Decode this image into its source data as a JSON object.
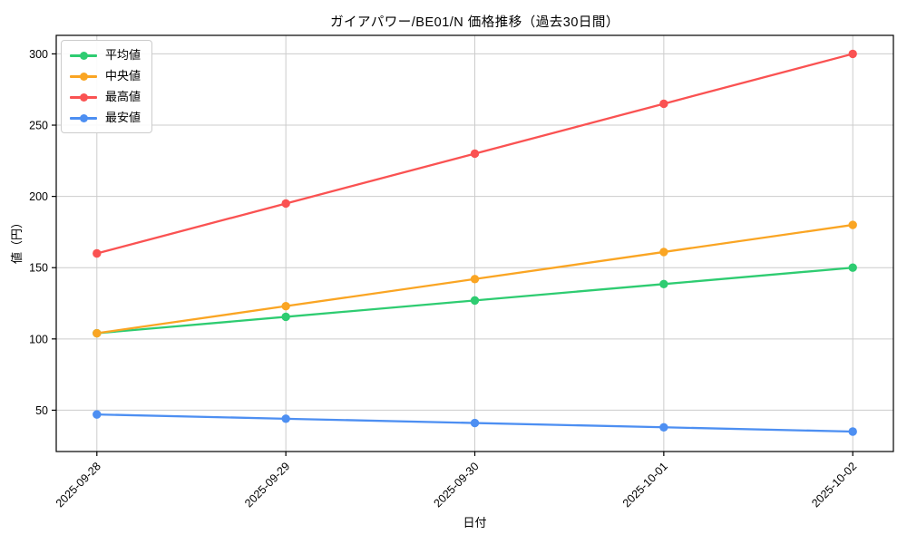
{
  "chart_data": {
    "type": "line",
    "title": "ガイアパワー/BE01/N 価格推移（過去30日間）",
    "xlabel": "日付",
    "ylabel": "値（円）",
    "categories": [
      "2025-09-28",
      "2025-09-29",
      "2025-09-30",
      "2025-10-01",
      "2025-10-02"
    ],
    "series": [
      {
        "name": "平均値",
        "color": "#2ecc71",
        "marker": "circle",
        "values": [
          104,
          115.5,
          127,
          138.5,
          150
        ]
      },
      {
        "name": "中央値",
        "color": "#faa523",
        "marker": "circle",
        "values": [
          104,
          123,
          142,
          161,
          180
        ]
      },
      {
        "name": "最高値",
        "color": "#fa5252",
        "marker": "circle",
        "values": [
          160,
          195,
          230,
          265,
          300
        ]
      },
      {
        "name": "最安値",
        "color": "#4d8ff2",
        "marker": "circle",
        "values": [
          47,
          44,
          41,
          38,
          35
        ]
      }
    ],
    "yticks": [
      50,
      100,
      150,
      200,
      250,
      300
    ],
    "ylim": [
      21,
      313
    ],
    "grid": true,
    "grid_color": "#cccccc",
    "axis_color": "#000000",
    "text_color": "#000000",
    "legend_position": "upper-left",
    "x_tick_rotation": 45
  }
}
